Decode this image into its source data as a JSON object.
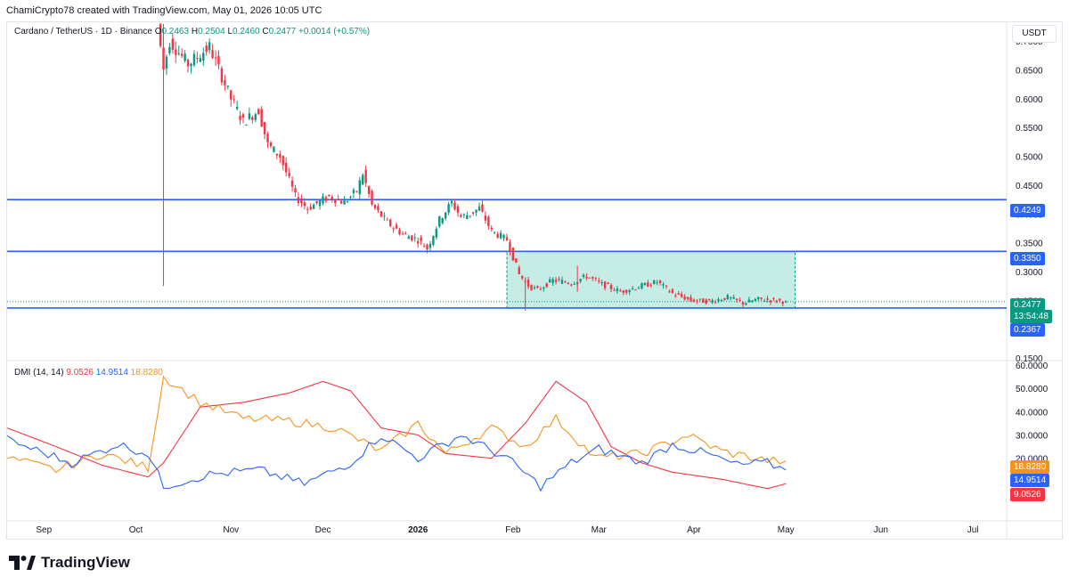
{
  "header": {
    "attribution": "ChamiCrypto78 created with TradingView.com, May 01, 2026 10:05 UTC"
  },
  "legend": {
    "symbol": "Cardano / TetherUS · 1D · Binance",
    "o_label": "O",
    "o": "0.2463",
    "h_label": "H",
    "h": "0.2504",
    "l_label": "L",
    "l": "0.2460",
    "c_label": "C",
    "c": "0.2477",
    "change": "+0.0014 (+0.57%)"
  },
  "currency": "USDT",
  "price_axis": {
    "ticks": [
      "0.7000",
      "0.6500",
      "0.6000",
      "0.5500",
      "0.5000",
      "0.4500",
      "0.4000",
      "0.3500",
      "0.3000",
      "0.2500",
      "0.2000",
      "0.1500"
    ],
    "tags": {
      "level1": "0.4249",
      "level2": "0.3350",
      "last_price": "0.2477",
      "countdown": "13:54:48",
      "level3": "0.2367"
    }
  },
  "dmi_legend": {
    "title": "DMI (14, 14)",
    "minus_di": "9.0526",
    "adx": "14.9514",
    "plus_di": "18.8280"
  },
  "dmi_axis": {
    "ticks": [
      "60.0000",
      "50.0000",
      "40.0000",
      "30.0000",
      "20.0000",
      "10.0000"
    ],
    "tags": {
      "plus_di": "18.8280",
      "adx": "14.9514",
      "minus_di": "9.0526"
    }
  },
  "time_axis": [
    "Sep",
    "Oct",
    "Nov",
    "Dec",
    "2026",
    "Feb",
    "Mar",
    "Apr",
    "May",
    "Jun",
    "Jul"
  ],
  "footer": {
    "logo": "TradingView"
  },
  "colors": {
    "up": "#089981",
    "down": "#f23645",
    "level_line": "#2962ff",
    "zone_fill": "#b2e6dc",
    "zone_border": "#089981",
    "plus_di": "#f7931a",
    "minus_di": "#f23645",
    "adx": "#2962ff",
    "last_price_tag": "#089981",
    "level_tag": "#2962ff"
  },
  "chart_data": {
    "type": "candlestick",
    "symbol": "Cardano / TetherUS",
    "interval": "1D",
    "exchange": "Binance",
    "y_range": [
      0.15,
      0.725
    ],
    "x_range": [
      "2025-08-20",
      "2026-07-12"
    ],
    "horizontal_levels": [
      0.4249,
      0.335,
      0.2367
    ],
    "consolidation_zone": {
      "start": "2026-01-30",
      "end": "2026-05-04",
      "low": 0.2367,
      "high": 0.335
    },
    "last_price": 0.2477,
    "ohlc_last": {
      "open": 0.2463,
      "high": 0.2504,
      "low": 0.246,
      "close": 0.2477
    },
    "price_path": [
      [
        "2025-10-08",
        0.73
      ],
      [
        "2025-10-10",
        0.65
      ],
      [
        "2025-10-12",
        0.7
      ],
      [
        "2025-10-18",
        0.66
      ],
      [
        "2025-10-25",
        0.69
      ],
      [
        "2025-11-01",
        0.6
      ],
      [
        "2025-11-05",
        0.56
      ],
      [
        "2025-11-10",
        0.58
      ],
      [
        "2025-11-13",
        0.52
      ],
      [
        "2025-11-17",
        0.5
      ],
      [
        "2025-11-22",
        0.43
      ],
      [
        "2025-11-26",
        0.41
      ],
      [
        "2025-12-03",
        0.43
      ],
      [
        "2025-12-08",
        0.42
      ],
      [
        "2025-12-12",
        0.44
      ],
      [
        "2025-12-14",
        0.47
      ],
      [
        "2025-12-17",
        0.415
      ],
      [
        "2025-12-22",
        0.385
      ],
      [
        "2025-12-27",
        0.365
      ],
      [
        "2026-01-01",
        0.355
      ],
      [
        "2026-01-04",
        0.34
      ],
      [
        "2026-01-08",
        0.39
      ],
      [
        "2026-01-12",
        0.42
      ],
      [
        "2026-01-15",
        0.395
      ],
      [
        "2026-01-18",
        0.4
      ],
      [
        "2026-01-21",
        0.41
      ],
      [
        "2026-01-25",
        0.37
      ],
      [
        "2026-01-30",
        0.355
      ],
      [
        "2026-02-03",
        0.295
      ],
      [
        "2026-02-06",
        0.275
      ],
      [
        "2026-02-09",
        0.268
      ],
      [
        "2026-02-14",
        0.285
      ],
      [
        "2026-02-20",
        0.28
      ],
      [
        "2026-02-25",
        0.292
      ],
      [
        "2026-03-02",
        0.278
      ],
      [
        "2026-03-08",
        0.265
      ],
      [
        "2026-03-15",
        0.275
      ],
      [
        "2026-03-20",
        0.282
      ],
      [
        "2026-03-25",
        0.262
      ],
      [
        "2026-03-31",
        0.25
      ],
      [
        "2026-04-06",
        0.248
      ],
      [
        "2026-04-12",
        0.255
      ],
      [
        "2026-04-17",
        0.245
      ],
      [
        "2026-04-22",
        0.252
      ],
      [
        "2026-04-27",
        0.25
      ],
      [
        "2026-05-01",
        0.2477
      ]
    ],
    "wicks": [
      {
        "date": "2025-10-10",
        "high": 0.73,
        "low": 0.275
      },
      {
        "date": "2026-02-05",
        "high": 0.29,
        "low": 0.232
      },
      {
        "date": "2026-02-22",
        "high": 0.31,
        "low": 0.265
      }
    ],
    "dmi": {
      "y_range": [
        0,
        60
      ],
      "series": [
        {
          "name": "-DI",
          "last": 9.0526,
          "points": [
            [
              "2025-08-20",
              33
            ],
            [
              "2025-09-05",
              25
            ],
            [
              "2025-09-20",
              17
            ],
            [
              "2025-10-05",
              12
            ],
            [
              "2025-10-10",
              18
            ],
            [
              "2025-10-22",
              42
            ],
            [
              "2025-11-05",
              44
            ],
            [
              "2025-11-20",
              48
            ],
            [
              "2025-12-01",
              53
            ],
            [
              "2025-12-10",
              49
            ],
            [
              "2025-12-20",
              33
            ],
            [
              "2026-01-01",
              30
            ],
            [
              "2026-01-10",
              22
            ],
            [
              "2026-01-25",
              20
            ],
            [
              "2026-02-05",
              35
            ],
            [
              "2026-02-15",
              53
            ],
            [
              "2026-02-25",
              44
            ],
            [
              "2026-03-05",
              25
            ],
            [
              "2026-03-15",
              18
            ],
            [
              "2026-03-25",
              14
            ],
            [
              "2026-04-10",
              11
            ],
            [
              "2026-04-25",
              7
            ],
            [
              "2026-05-01",
              9.0526
            ]
          ]
        },
        {
          "name": "+DI",
          "last": 18.828,
          "points": [
            [
              "2025-08-20",
              20
            ],
            [
              "2025-09-05",
              15
            ],
            [
              "2025-09-20",
              22
            ],
            [
              "2025-10-05",
              16
            ],
            [
              "2025-10-10",
              55
            ],
            [
              "2025-10-22",
              44
            ],
            [
              "2025-11-05",
              37
            ],
            [
              "2025-11-20",
              36
            ],
            [
              "2025-12-05",
              33
            ],
            [
              "2025-12-20",
              23
            ],
            [
              "2026-01-01",
              35
            ],
            [
              "2026-01-10",
              22
            ],
            [
              "2026-01-25",
              33
            ],
            [
              "2026-02-05",
              25
            ],
            [
              "2026-02-15",
              37
            ],
            [
              "2026-02-28",
              20
            ],
            [
              "2026-03-15",
              22
            ],
            [
              "2026-03-30",
              30
            ],
            [
              "2026-04-10",
              23
            ],
            [
              "2026-04-25",
              19
            ],
            [
              "2026-05-01",
              18.828
            ]
          ]
        },
        {
          "name": "ADX",
          "last": 14.9514,
          "points": [
            [
              "2025-08-20",
              28
            ],
            [
              "2025-09-10",
              18
            ],
            [
              "2025-09-25",
              26
            ],
            [
              "2025-10-05",
              22
            ],
            [
              "2025-10-10",
              8
            ],
            [
              "2025-10-25",
              13
            ],
            [
              "2025-11-10",
              15
            ],
            [
              "2025-11-25",
              9
            ],
            [
              "2025-12-10",
              18
            ],
            [
              "2025-12-20",
              30
            ],
            [
              "2026-01-01",
              20
            ],
            [
              "2026-01-15",
              30
            ],
            [
              "2026-01-30",
              20
            ],
            [
              "2026-02-10",
              8
            ],
            [
              "2026-02-20",
              18
            ],
            [
              "2026-03-01",
              24
            ],
            [
              "2026-03-15",
              18
            ],
            [
              "2026-03-25",
              26
            ],
            [
              "2026-04-05",
              22
            ],
            [
              "2026-04-15",
              17
            ],
            [
              "2026-04-25",
              18
            ],
            [
              "2026-05-01",
              14.9514
            ]
          ]
        }
      ]
    }
  }
}
